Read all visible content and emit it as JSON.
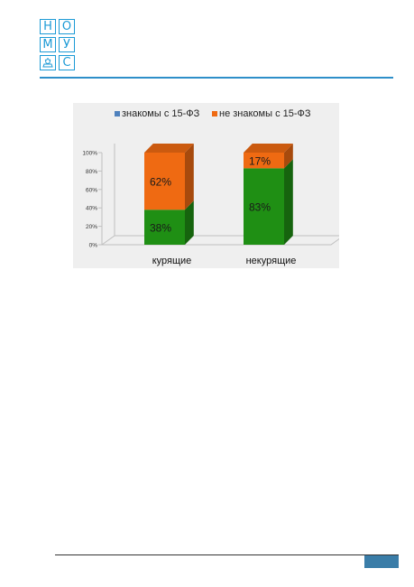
{
  "logo": {
    "letters": [
      {
        "text": "Н"
      },
      {
        "text": "О"
      },
      {
        "text": "М"
      },
      {
        "text": "У"
      },
      {
        "text": "emblem"
      },
      {
        "text": "С"
      }
    ]
  },
  "colors": {
    "brand": "#1c9ad6",
    "rule": "#2e8fc9",
    "aware": "#1f8f14",
    "unaware": "#ef6a12",
    "legend_aware": "#4f81bd",
    "page_tab": "#3a7da8"
  },
  "chart_data": {
    "type": "bar",
    "stacked": true,
    "three_d": true,
    "categories": [
      "курящие",
      "некурящие"
    ],
    "series": [
      {
        "name": "знакомы с 15-ФЗ",
        "values": [
          38,
          83
        ],
        "labels": [
          "38%",
          "83%"
        ]
      },
      {
        "name": "не знакомы с 15-ФЗ",
        "values": [
          62,
          17
        ],
        "labels": [
          "62%",
          "17%"
        ]
      }
    ],
    "yticks": [
      "0%",
      "20%",
      "40%",
      "60%",
      "80%",
      "100%"
    ],
    "ylim": [
      0,
      100
    ],
    "legend_position": "top",
    "grid": false
  }
}
